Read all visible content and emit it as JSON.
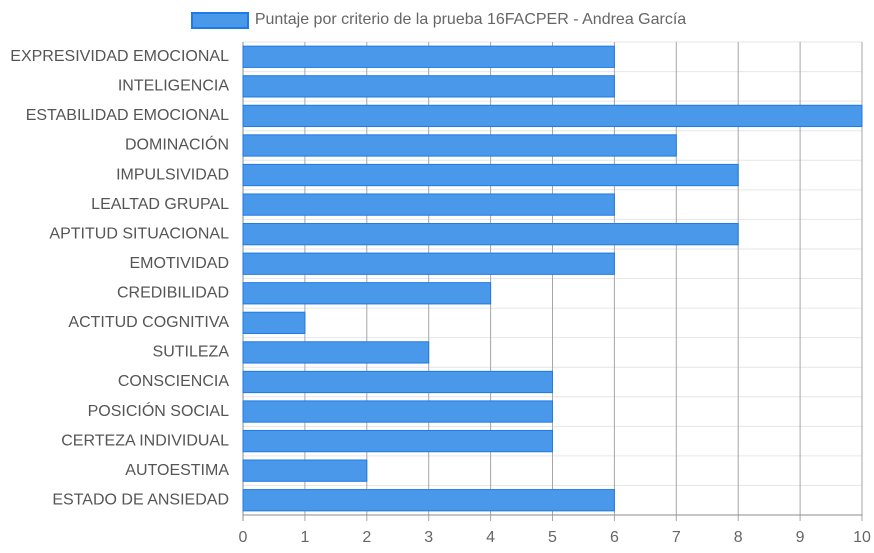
{
  "chart_data": {
    "type": "bar",
    "orientation": "horizontal",
    "legend": {
      "label": "Puntaje por criterio de la prueba 16FACPER - Andrea García",
      "placement": "top-center"
    },
    "categories": [
      "EXPRESIVIDAD EMOCIONAL",
      "INTELIGENCIA",
      "ESTABILIDAD EMOCIONAL",
      "DOMINACIÓN",
      "IMPULSIVIDAD",
      "LEALTAD GRUPAL",
      "APTITUD SITUACIONAL",
      "EMOTIVIDAD",
      "CREDIBILIDAD",
      "ACTITUD COGNITIVA",
      "SUTILEZA",
      "CONSCIENCIA",
      "POSICIÓN SOCIAL",
      "CERTEZA INDIVIDUAL",
      "AUTOESTIMA",
      "ESTADO DE ANSIEDAD"
    ],
    "series": [
      {
        "name": "Puntaje por criterio de la prueba 16FACPER - Andrea García",
        "values": [
          6,
          6,
          10,
          7,
          8,
          6,
          8,
          6,
          4,
          1,
          3,
          5,
          5,
          5,
          2,
          6
        ]
      }
    ],
    "xlim": [
      0,
      10
    ],
    "xticks": [
      "0",
      "1",
      "2",
      "3",
      "4",
      "5",
      "6",
      "7",
      "8",
      "9",
      "10"
    ],
    "grid": true,
    "colors": {
      "bar_fill": "#4a98ea",
      "bar_border": "#1e7ae6",
      "grid_vertical": "#a6a6a6",
      "grid_horizontal": "#e6e6e6",
      "axis": "#8c8c8c"
    }
  }
}
